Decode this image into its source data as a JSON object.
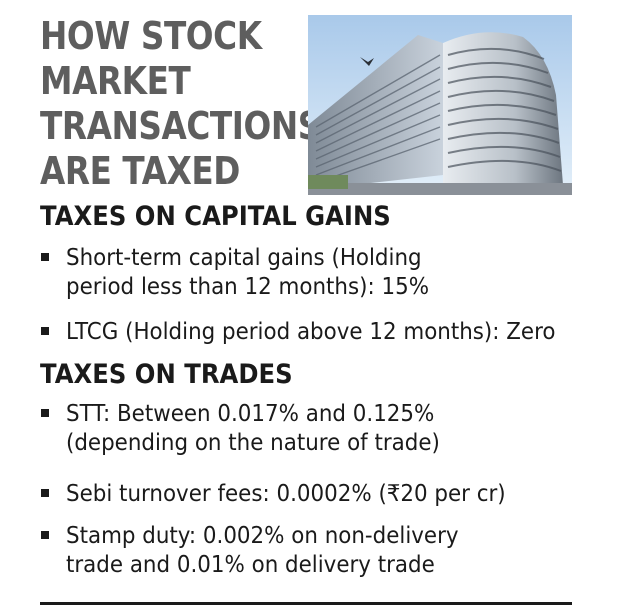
{
  "title": {
    "line1": "HOW STOCK",
    "line2": "MARKET",
    "line3": "TRANSACTIONS",
    "line4": "ARE TAXED"
  },
  "capital_gains": {
    "heading": "TAXES ON CAPITAL GAINS",
    "items": [
      {
        "line1": "Short-term capital gains (Holding",
        "line2": "period less than 12 months): 15%"
      },
      {
        "line1": "LTCG (Holding period above 12 months): Zero"
      }
    ]
  },
  "trades": {
    "heading": "TAXES ON TRADES",
    "items": [
      {
        "line1": "STT: Between 0.017% and 0.125%",
        "line2": "(depending on the nature of trade)"
      },
      {
        "line1": "Sebi turnover fees: 0.0002% (₹20 per cr)"
      },
      {
        "line1": "Stamp duty: 0.002% on non-delivery",
        "line2": "trade and 0.01% on delivery trade"
      }
    ]
  },
  "colors": {
    "title": "#5e5e5e",
    "text": "#1a1a1a",
    "sky": "#cfe3f5"
  },
  "photo": {
    "icon": "building-photo"
  }
}
